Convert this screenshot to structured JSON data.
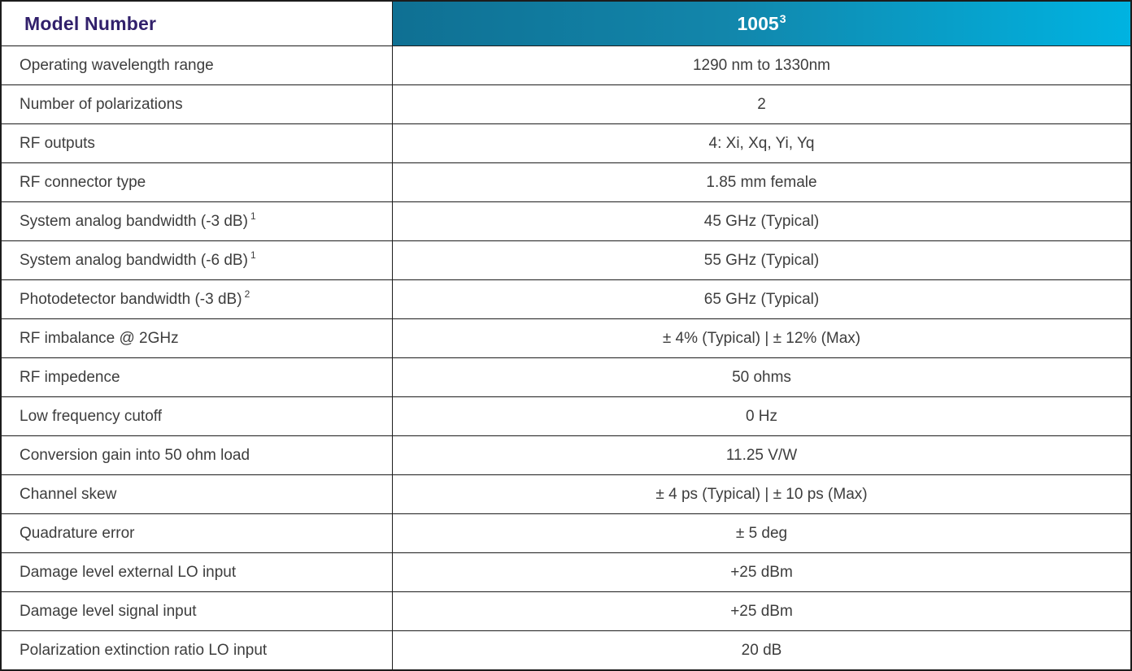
{
  "table": {
    "header": {
      "label": "Model Number",
      "model": "1005",
      "model_superscript": "3"
    },
    "rows": [
      {
        "label": "Operating wavelength range",
        "sup": "",
        "value": "1290 nm to 1330nm"
      },
      {
        "label": "Number of polarizations",
        "sup": "",
        "value": "2"
      },
      {
        "label": "RF outputs",
        "sup": "",
        "value": "4: Xi, Xq, Yi, Yq"
      },
      {
        "label": "RF connector type",
        "sup": "",
        "value": "1.85 mm female"
      },
      {
        "label": "System analog bandwidth (-3 dB)",
        "sup": "1",
        "value": "45 GHz (Typical)"
      },
      {
        "label": "System analog bandwidth (-6 dB)",
        "sup": "1",
        "value": "55 GHz (Typical)"
      },
      {
        "label": "Photodetector bandwidth (-3 dB)",
        "sup": "2",
        "value": "65 GHz (Typical)"
      },
      {
        "label": "RF imbalance @ 2GHz",
        "sup": "",
        "value": "± 4% (Typical) | ± 12% (Max)"
      },
      {
        "label": "RF impedence",
        "sup": "",
        "value": "50 ohms"
      },
      {
        "label": "Low frequency cutoff",
        "sup": "",
        "value": "0 Hz"
      },
      {
        "label": "Conversion gain into 50 ohm load",
        "sup": "",
        "value": "11.25 V/W"
      },
      {
        "label": "Channel skew",
        "sup": "",
        "value": "± 4 ps (Typical) | ± 10 ps (Max)"
      },
      {
        "label": "Quadrature error",
        "sup": "",
        "value": "± 5 deg"
      },
      {
        "label": "Damage level external LO input",
        "sup": "",
        "value": "+25 dBm"
      },
      {
        "label": "Damage level signal input",
        "sup": "",
        "value": "+25 dBm"
      },
      {
        "label": "Polarization extinction ratio LO input",
        "sup": "",
        "value": "20 dB"
      }
    ],
    "colors": {
      "title_purple": "#31206b",
      "header_gradient_start": "#0f7093",
      "header_gradient_end": "#00b3e1",
      "border": "#1c1c1c",
      "body_text": "#3d3d3d"
    }
  }
}
